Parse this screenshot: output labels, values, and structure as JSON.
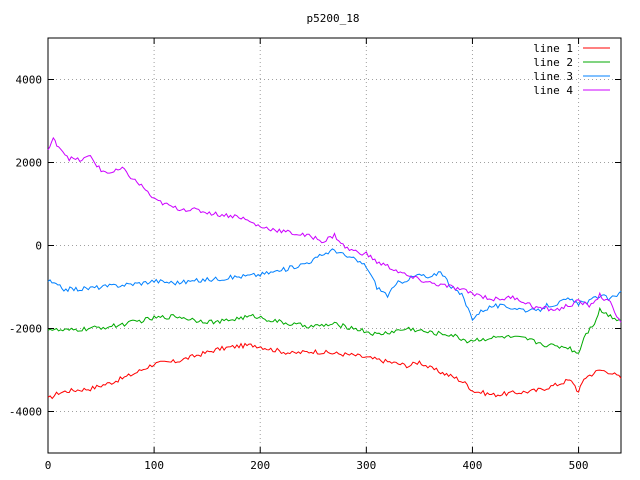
{
  "chart_data": {
    "type": "line",
    "title": "p5200_18",
    "xlabel": "",
    "ylabel": "",
    "xlim": [
      0,
      540
    ],
    "ylim": [
      -5000,
      5000
    ],
    "xticks": [
      0,
      100,
      200,
      300,
      400,
      500
    ],
    "yticks": [
      -4000,
      -2000,
      0,
      2000,
      4000
    ],
    "grid": true,
    "legend_position": "top-right",
    "series": [
      {
        "name": "line 1",
        "color": "#ff0000",
        "points": [
          [
            0,
            -3700
          ],
          [
            10,
            -3550
          ],
          [
            20,
            -3500
          ],
          [
            40,
            -3450
          ],
          [
            60,
            -3300
          ],
          [
            80,
            -3100
          ],
          [
            100,
            -2850
          ],
          [
            120,
            -2800
          ],
          [
            140,
            -2650
          ],
          [
            160,
            -2500
          ],
          [
            180,
            -2420
          ],
          [
            195,
            -2400
          ],
          [
            210,
            -2500
          ],
          [
            230,
            -2600
          ],
          [
            250,
            -2550
          ],
          [
            270,
            -2600
          ],
          [
            290,
            -2650
          ],
          [
            310,
            -2750
          ],
          [
            330,
            -2850
          ],
          [
            340,
            -2900
          ],
          [
            350,
            -2800
          ],
          [
            360,
            -2950
          ],
          [
            370,
            -3050
          ],
          [
            385,
            -3200
          ],
          [
            395,
            -3350
          ],
          [
            400,
            -3500
          ],
          [
            410,
            -3550
          ],
          [
            420,
            -3600
          ],
          [
            440,
            -3550
          ],
          [
            460,
            -3500
          ],
          [
            480,
            -3350
          ],
          [
            490,
            -3250
          ],
          [
            495,
            -3300
          ],
          [
            500,
            -3550
          ],
          [
            505,
            -3200
          ],
          [
            520,
            -3000
          ],
          [
            530,
            -3050
          ],
          [
            540,
            -3200
          ]
        ]
      },
      {
        "name": "line 2",
        "color": "#00aa00",
        "points": [
          [
            0,
            -2000
          ],
          [
            10,
            -2050
          ],
          [
            20,
            -2050
          ],
          [
            40,
            -2000
          ],
          [
            60,
            -1950
          ],
          [
            80,
            -1850
          ],
          [
            100,
            -1750
          ],
          [
            120,
            -1700
          ],
          [
            140,
            -1800
          ],
          [
            160,
            -1850
          ],
          [
            180,
            -1750
          ],
          [
            195,
            -1700
          ],
          [
            210,
            -1800
          ],
          [
            230,
            -1900
          ],
          [
            250,
            -1950
          ],
          [
            270,
            -1900
          ],
          [
            290,
            -2000
          ],
          [
            310,
            -2150
          ],
          [
            330,
            -2050
          ],
          [
            340,
            -2000
          ],
          [
            350,
            -2050
          ],
          [
            360,
            -2100
          ],
          [
            380,
            -2150
          ],
          [
            395,
            -2300
          ],
          [
            410,
            -2250
          ],
          [
            430,
            -2200
          ],
          [
            450,
            -2250
          ],
          [
            470,
            -2400
          ],
          [
            490,
            -2450
          ],
          [
            500,
            -2600
          ],
          [
            505,
            -2200
          ],
          [
            515,
            -1850
          ],
          [
            520,
            -1550
          ],
          [
            530,
            -1700
          ],
          [
            540,
            -1800
          ]
        ]
      },
      {
        "name": "line 3",
        "color": "#0080ff",
        "points": [
          [
            0,
            -850
          ],
          [
            15,
            -1050
          ],
          [
            30,
            -1050
          ],
          [
            50,
            -1000
          ],
          [
            70,
            -950
          ],
          [
            90,
            -900
          ],
          [
            100,
            -850
          ],
          [
            120,
            -900
          ],
          [
            140,
            -850
          ],
          [
            160,
            -800
          ],
          [
            180,
            -750
          ],
          [
            200,
            -700
          ],
          [
            220,
            -600
          ],
          [
            240,
            -450
          ],
          [
            250,
            -350
          ],
          [
            260,
            -200
          ],
          [
            270,
            -100
          ],
          [
            280,
            -250
          ],
          [
            290,
            -350
          ],
          [
            300,
            -500
          ],
          [
            310,
            -1000
          ],
          [
            320,
            -1200
          ],
          [
            330,
            -900
          ],
          [
            340,
            -800
          ],
          [
            350,
            -700
          ],
          [
            360,
            -800
          ],
          [
            370,
            -600
          ],
          [
            380,
            -1000
          ],
          [
            390,
            -1200
          ],
          [
            400,
            -1750
          ],
          [
            410,
            -1550
          ],
          [
            420,
            -1450
          ],
          [
            440,
            -1500
          ],
          [
            460,
            -1600
          ],
          [
            470,
            -1450
          ],
          [
            480,
            -1400
          ],
          [
            490,
            -1300
          ],
          [
            500,
            -1400
          ],
          [
            510,
            -1350
          ],
          [
            520,
            -1200
          ],
          [
            530,
            -1300
          ],
          [
            540,
            -1100
          ]
        ]
      },
      {
        "name": "line 4",
        "color": "#cc00ff",
        "points": [
          [
            0,
            2300
          ],
          [
            5,
            2550
          ],
          [
            10,
            2400
          ],
          [
            20,
            2100
          ],
          [
            30,
            2050
          ],
          [
            40,
            2150
          ],
          [
            50,
            1800
          ],
          [
            60,
            1750
          ],
          [
            70,
            1850
          ],
          [
            80,
            1600
          ],
          [
            90,
            1400
          ],
          [
            100,
            1100
          ],
          [
            120,
            900
          ],
          [
            140,
            850
          ],
          [
            160,
            750
          ],
          [
            180,
            700
          ],
          [
            200,
            450
          ],
          [
            220,
            350
          ],
          [
            240,
            250
          ],
          [
            250,
            200
          ],
          [
            260,
            100
          ],
          [
            270,
            250
          ],
          [
            280,
            -50
          ],
          [
            290,
            -150
          ],
          [
            300,
            -200
          ],
          [
            310,
            -400
          ],
          [
            320,
            -500
          ],
          [
            340,
            -750
          ],
          [
            360,
            -900
          ],
          [
            380,
            -1000
          ],
          [
            400,
            -1150
          ],
          [
            420,
            -1300
          ],
          [
            440,
            -1250
          ],
          [
            460,
            -1500
          ],
          [
            480,
            -1550
          ],
          [
            500,
            -1350
          ],
          [
            510,
            -1450
          ],
          [
            520,
            -1200
          ],
          [
            530,
            -1400
          ],
          [
            540,
            -1850
          ]
        ]
      }
    ]
  }
}
